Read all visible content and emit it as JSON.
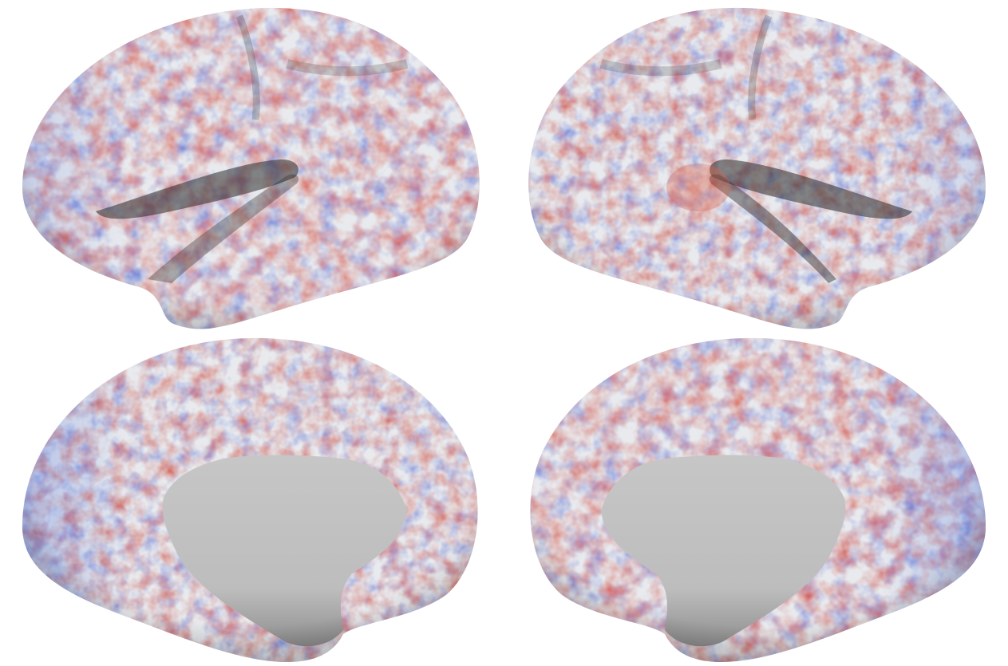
{
  "figure": {
    "views": [
      {
        "id": "left-lateral",
        "hemisphere": "left",
        "view": "lateral"
      },
      {
        "id": "right-lateral",
        "hemisphere": "right",
        "view": "lateral"
      },
      {
        "id": "left-medial",
        "hemisphere": "left",
        "view": "medial"
      },
      {
        "id": "right-medial",
        "hemisphere": "right",
        "view": "medial"
      }
    ],
    "colors": {
      "background": "#ffffff",
      "surface_neutral": "#e6e8ec",
      "positive": "#d9604a",
      "negative": "#4a6fd6",
      "medial_wall": "#c2c2c2",
      "sulcus_shadow": "#2b2b2b"
    },
    "colormap": "coolwarm"
  }
}
